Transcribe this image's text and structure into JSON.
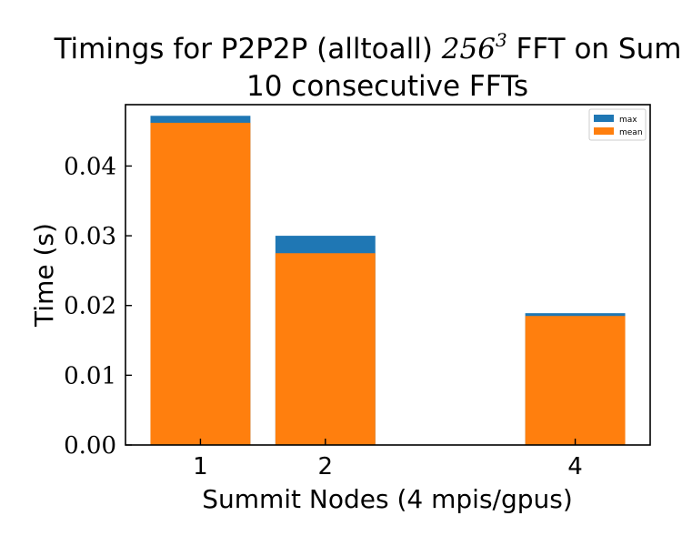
{
  "chart_data": {
    "type": "bar",
    "title_line1_prefix": "Timings for P2P2P (alltoall) ",
    "title_math_base": "256",
    "title_math_exp": "3",
    "title_line1_suffix": " FFT on Summit",
    "title_line2": "10 consecutive FFTs",
    "xlabel": "Summit Nodes (4 mpis/gpus)",
    "ylabel": "Time (s)",
    "x": [
      1,
      2,
      4
    ],
    "x_tick_labels": [
      "1",
      "2",
      "4"
    ],
    "xlim": [
      0.4,
      4.6
    ],
    "ylim": [
      0,
      0.0488
    ],
    "y_ticks": [
      0.0,
      0.01,
      0.02,
      0.03,
      0.04
    ],
    "y_tick_labels": [
      "0.00",
      "0.01",
      "0.02",
      "0.03",
      "0.04"
    ],
    "bar_width": 0.8,
    "series": [
      {
        "name": "max",
        "values": [
          0.0472,
          0.03,
          0.0189
        ],
        "color": "#1f77b4"
      },
      {
        "name": "mean",
        "values": [
          0.0462,
          0.0275,
          0.0185
        ],
        "color": "#ff7f0e"
      }
    ],
    "legend_position": "top-right",
    "grid": false
  }
}
